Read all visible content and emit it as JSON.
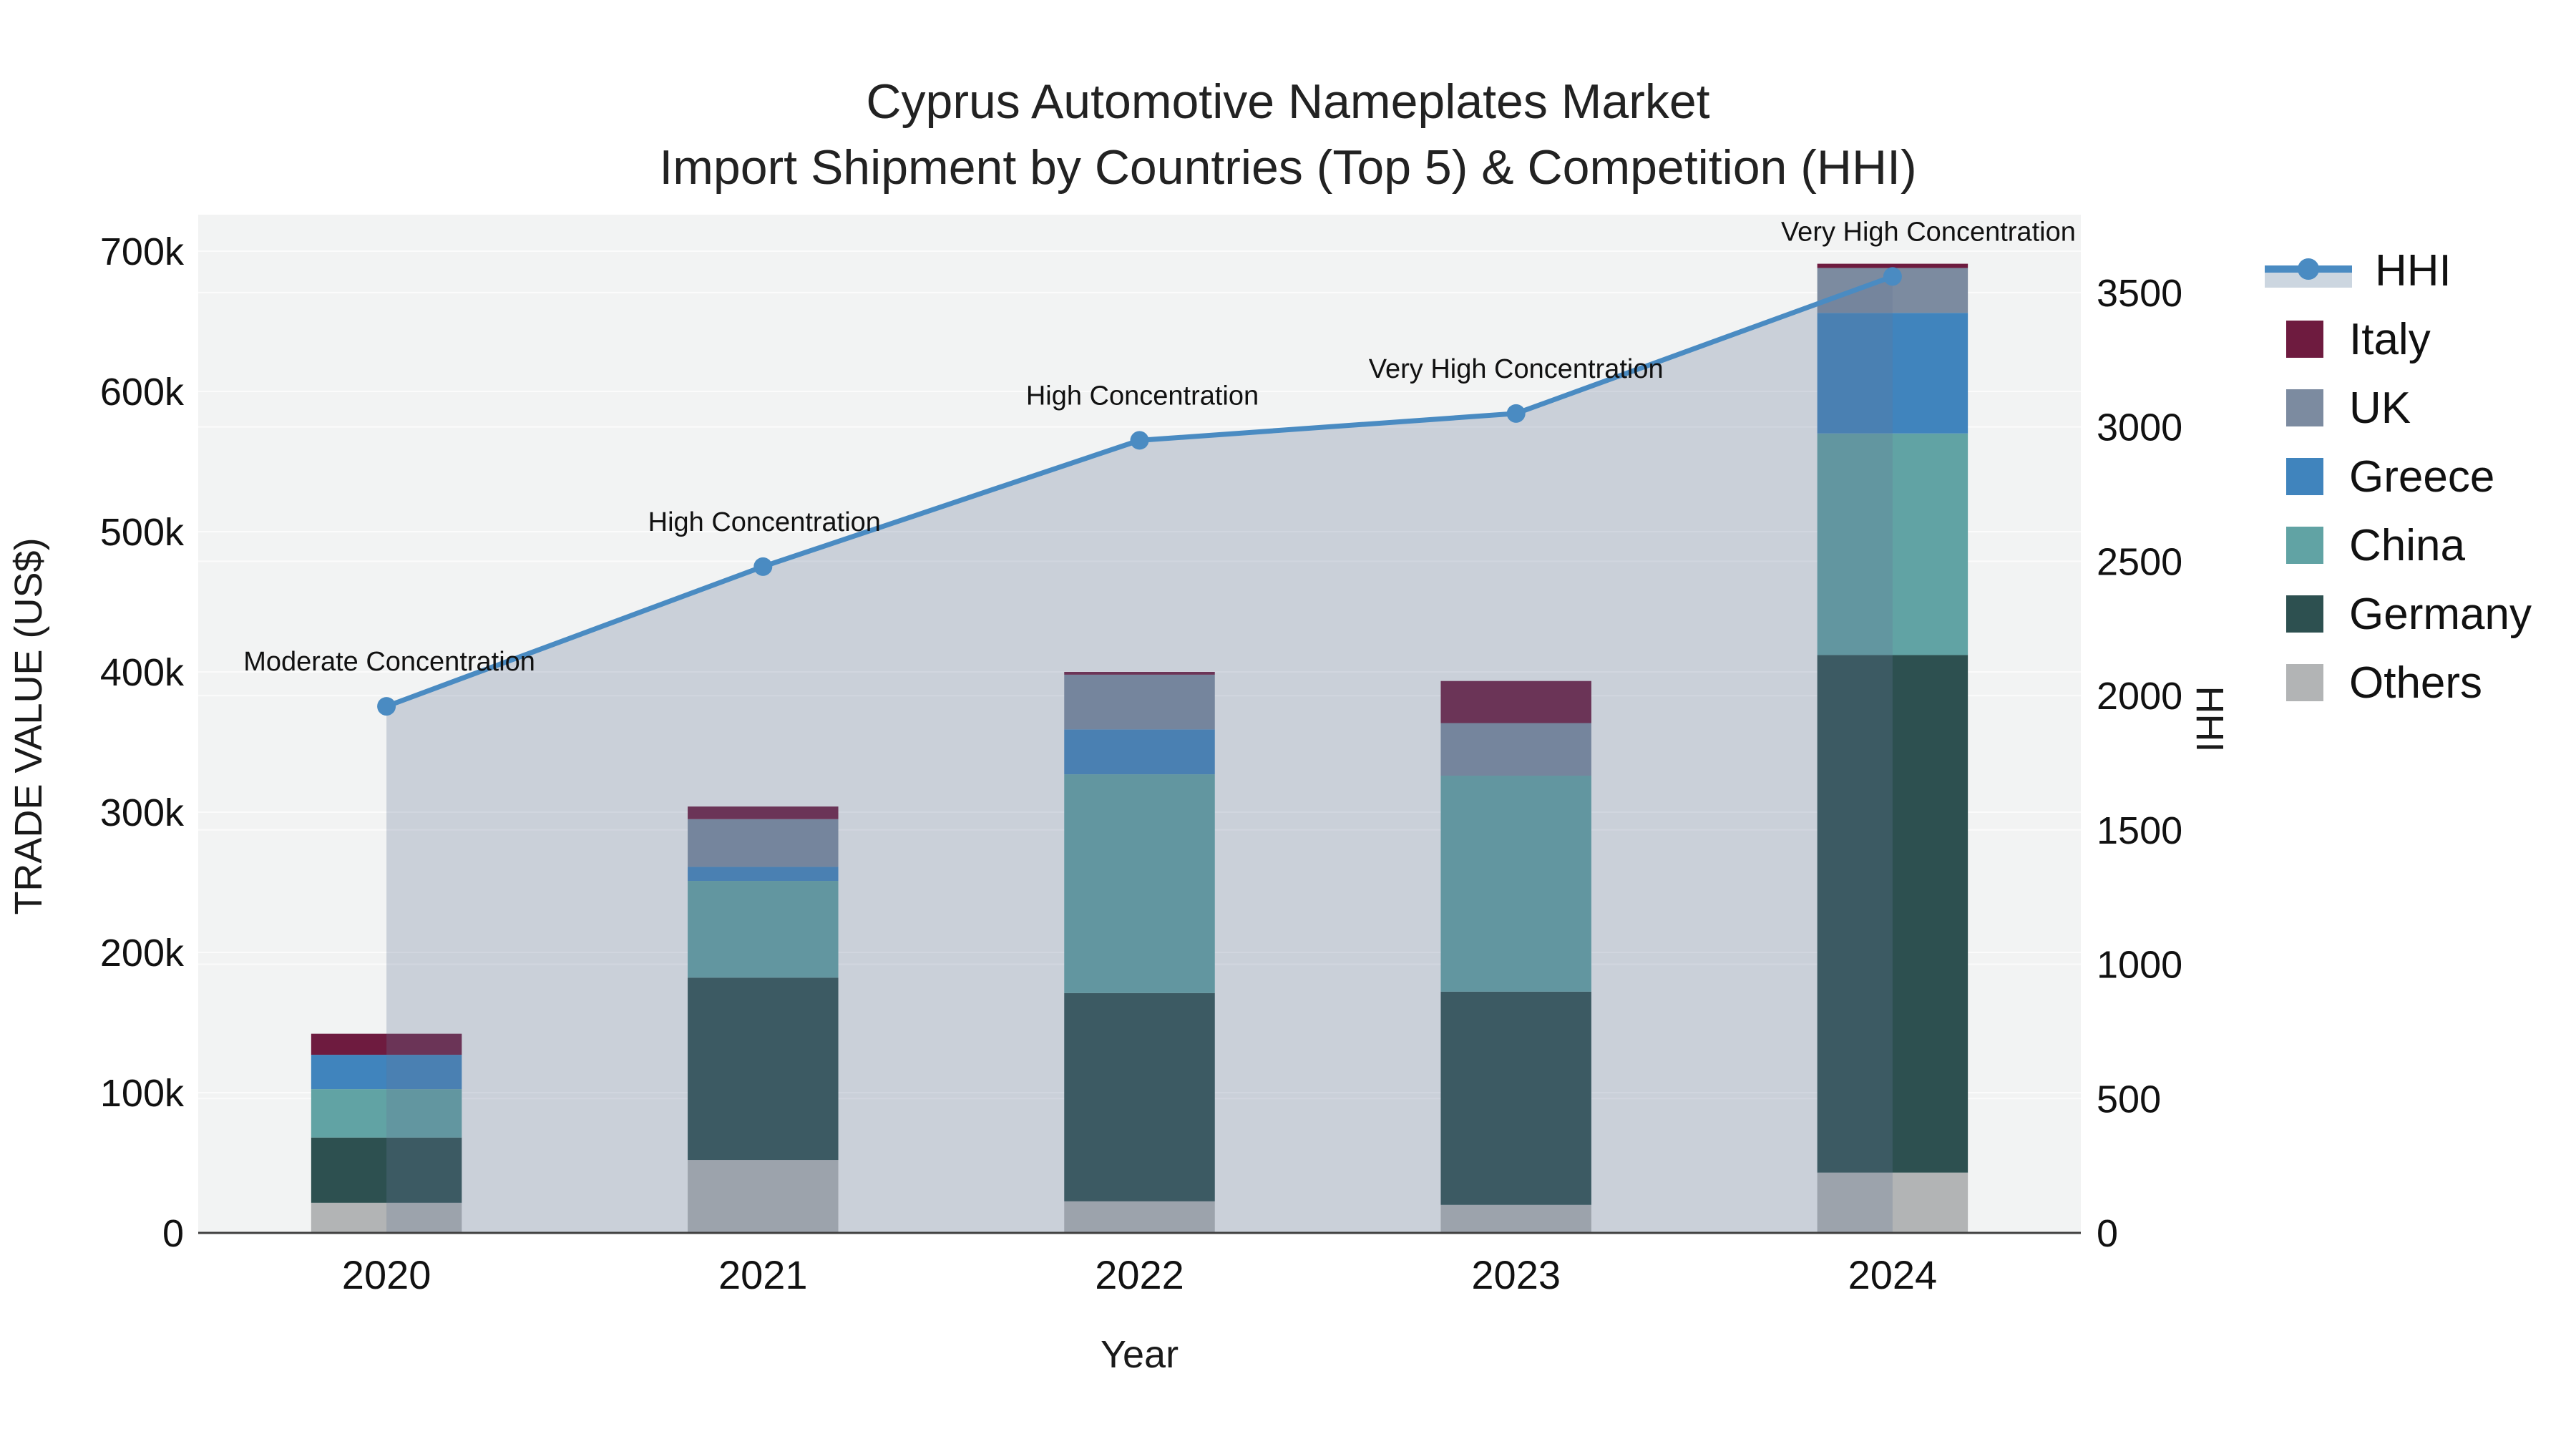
{
  "title": {
    "line1": "Cyprus Automotive Nameplates Market",
    "line2": "Import Shipment by Countries (Top 5) & Competition (HHI)"
  },
  "chart_data": {
    "type": "bar+line",
    "bar_mode": "stacked",
    "categories": [
      "2020",
      "2021",
      "2022",
      "2023",
      "2024"
    ],
    "xlabel": "Year",
    "ylabel_left": "TRADE VALUE (US$)",
    "ylabel_right": "HHI",
    "series": [
      {
        "name": "Others",
        "color": "#b2b4b5",
        "values": [
          21500,
          52000,
          22500,
          20000,
          43000
        ]
      },
      {
        "name": "Germany",
        "color": "#2d5050",
        "values": [
          46500,
          130000,
          148500,
          152000,
          369000
        ]
      },
      {
        "name": "China",
        "color": "#61a3a4",
        "values": [
          34500,
          69000,
          156000,
          154000,
          158000
        ]
      },
      {
        "name": "Greece",
        "color": "#4084bd",
        "values": [
          24500,
          10000,
          32000,
          0,
          86000
        ]
      },
      {
        "name": "UK",
        "color": "#7c8ba0",
        "values": [
          0,
          34000,
          39000,
          37500,
          32000
        ]
      },
      {
        "name": "Italy",
        "color": "#6e1b3f",
        "values": [
          15000,
          9000,
          2000,
          30000,
          3000
        ]
      }
    ],
    "line_series": {
      "name": "HHI",
      "color": "#4a8bc2",
      "fill_color": "rgba(100,120,150,0.28)",
      "values": [
        1960,
        2480,
        2950,
        3050,
        3560
      ]
    },
    "hhi_annotations": [
      "Moderate Concentration",
      "High Concentration",
      "High Concentration",
      "Very High Concentration",
      "Very High Concentration"
    ],
    "yticks_left": {
      "values": [
        0,
        100000,
        200000,
        300000,
        400000,
        500000,
        600000,
        700000
      ],
      "labels": [
        "0",
        "100k",
        "200k",
        "300k",
        "400k",
        "500k",
        "600k",
        "700k"
      ]
    },
    "yticks_right": {
      "values": [
        0,
        500,
        1000,
        1500,
        2000,
        2500,
        3000,
        3500
      ],
      "labels": [
        "0",
        "500",
        "1000",
        "1500",
        "2000",
        "2500",
        "3000",
        "3500"
      ]
    },
    "ylim_left": [
      0,
      726000
    ],
    "ylim_right": [
      0,
      3790
    ],
    "grid": true,
    "legend_position": "right",
    "legend": [
      "HHI",
      "Italy",
      "UK",
      "Greece",
      "China",
      "Germany",
      "Others"
    ]
  }
}
